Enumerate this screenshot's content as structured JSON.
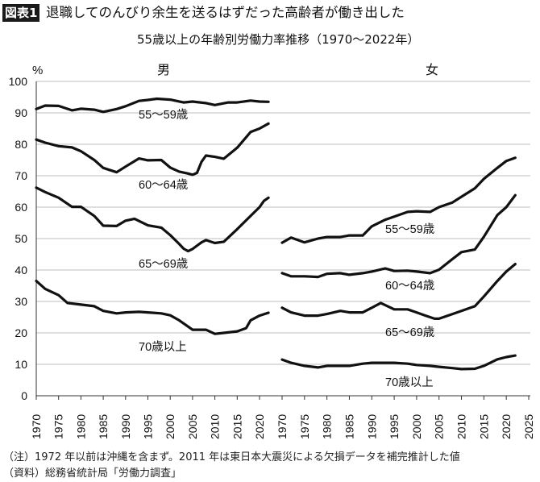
{
  "header": {
    "badge": "図表1",
    "title": "退職してのんびり余生を送るはずだった高齢者が働き出した",
    "subtitle": "55歳以上の年齢別労働力率推移（1970〜2022年）"
  },
  "notes": {
    "note": "（注）1972 年以前は沖縄を含まず。2011 年は東日本大震災による欠損データを補完推計した値",
    "source": "（資料）総務省統計局「労働力調査」"
  },
  "chart_data": {
    "type": "line",
    "title": "55歳以上の年齢別労働力率推移（1970〜2022年）",
    "ylabel": "%",
    "ylim": [
      0,
      100
    ],
    "yticks": [
      0,
      10,
      20,
      30,
      40,
      50,
      60,
      70,
      80,
      90,
      100
    ],
    "xlim": [
      1970,
      2025
    ],
    "xticks": [
      1970,
      1975,
      1980,
      1985,
      1990,
      1995,
      2000,
      2005,
      2010,
      2015,
      2020,
      2025
    ],
    "grid": true,
    "panels": [
      {
        "name": "男",
        "series": [
          {
            "name": "55〜59歳",
            "x": [
              1970,
              1972,
              1975,
              1978,
              1980,
              1983,
              1985,
              1988,
              1990,
              1993,
              1995,
              1997,
              2000,
              2003,
              2005,
              2008,
              2010,
              2013,
              2015,
              2018,
              2020,
              2022
            ],
            "values": [
              91.2,
              92.3,
              92.2,
              90.8,
              91.3,
              91.0,
              90.3,
              91.2,
              92.1,
              93.8,
              94.1,
              94.5,
              94.2,
              93.3,
              93.6,
              93.1,
              92.5,
              93.3,
              93.3,
              93.9,
              93.6,
              93.5
            ]
          },
          {
            "name": "60〜64歳",
            "x": [
              1970,
              1972,
              1975,
              1978,
              1980,
              1983,
              1985,
              1988,
              1990,
              1993,
              1995,
              1998,
              2000,
              2002,
              2004,
              2005,
              2006,
              2007,
              2008,
              2010,
              2012,
              2015,
              2018,
              2020,
              2022
            ],
            "values": [
              81.5,
              80.5,
              79.4,
              79.0,
              77.8,
              75.0,
              72.5,
              71.1,
              72.9,
              75.5,
              74.9,
              75.0,
              72.6,
              71.3,
              70.7,
              70.3,
              70.9,
              74.4,
              76.4,
              76.0,
              75.4,
              78.9,
              83.9,
              85.0,
              86.6
            ]
          },
          {
            "name": "65〜69歳",
            "x": [
              1970,
              1972,
              1975,
              1978,
              1980,
              1983,
              1985,
              1988,
              1990,
              1992,
              1995,
              1998,
              2000,
              2002,
              2003,
              2004,
              2005,
              2007,
              2008,
              2010,
              2012,
              2015,
              2018,
              2020,
              2021,
              2022
            ],
            "values": [
              66.2,
              64.8,
              63.0,
              60.1,
              60.1,
              57.2,
              54.1,
              54.0,
              55.7,
              56.3,
              54.2,
              53.5,
              51.1,
              48.3,
              46.8,
              46.0,
              46.7,
              48.8,
              49.5,
              48.6,
              49.0,
              53.0,
              57.2,
              60.0,
              62.0,
              63.0
            ]
          },
          {
            "name": "70歳以上",
            "x": [
              1970,
              1972,
              1975,
              1977,
              1980,
              1983,
              1985,
              1988,
              1990,
              1993,
              1995,
              1998,
              2000,
              2002,
              2004,
              2005,
              2008,
              2010,
              2012,
              2015,
              2017,
              2018,
              2020,
              2022
            ],
            "values": [
              36.5,
              34.0,
              32.0,
              29.5,
              29.0,
              28.5,
              27.0,
              26.2,
              26.5,
              26.7,
              26.5,
              26.2,
              25.6,
              24.0,
              22.0,
              21.0,
              21.0,
              19.7,
              20.0,
              20.5,
              21.5,
              24.0,
              25.5,
              26.4
            ]
          }
        ]
      },
      {
        "name": "女",
        "series": [
          {
            "name": "55〜59歳",
            "x": [
              1970,
              1972,
              1975,
              1978,
              1980,
              1983,
              1985,
              1988,
              1990,
              1993,
              1995,
              1998,
              2000,
              2003,
              2005,
              2008,
              2010,
              2013,
              2015,
              2018,
              2020,
              2022
            ],
            "values": [
              48.7,
              50.3,
              48.8,
              50.0,
              50.5,
              50.5,
              51.0,
              51.0,
              53.9,
              56.0,
              57.0,
              58.5,
              58.7,
              58.5,
              60.0,
              61.5,
              63.3,
              66.0,
              69.0,
              72.5,
              74.7,
              75.7
            ]
          },
          {
            "name": "60〜64歳",
            "x": [
              1970,
              1972,
              1975,
              1978,
              1980,
              1983,
              1985,
              1988,
              1990,
              1993,
              1995,
              1998,
              2000,
              2003,
              2005,
              2008,
              2010,
              2013,
              2015,
              2018,
              2020,
              2022
            ],
            "values": [
              39.0,
              38.0,
              38.0,
              37.8,
              38.8,
              39.0,
              38.5,
              39.0,
              39.5,
              40.5,
              39.7,
              39.8,
              39.5,
              39.0,
              40.1,
              43.5,
              45.7,
              46.5,
              50.6,
              57.5,
              60.0,
              63.8
            ]
          },
          {
            "name": "65〜69歳",
            "x": [
              1970,
              1972,
              1975,
              1978,
              1980,
              1983,
              1985,
              1988,
              1990,
              1992,
              1995,
              1998,
              2000,
              2002,
              2004,
              2005,
              2008,
              2010,
              2013,
              2015,
              2018,
              2020,
              2022
            ],
            "values": [
              28.0,
              26.5,
              25.5,
              25.5,
              26.0,
              27.0,
              26.5,
              26.5,
              28.0,
              29.5,
              27.5,
              27.5,
              26.5,
              25.5,
              24.5,
              24.5,
              26.0,
              27.0,
              28.5,
              31.6,
              36.5,
              39.5,
              41.9
            ]
          },
          {
            "name": "70歳以上",
            "x": [
              1970,
              1972,
              1975,
              1978,
              1980,
              1983,
              1985,
              1988,
              1990,
              1993,
              1995,
              1998,
              2000,
              2003,
              2005,
              2008,
              2010,
              2013,
              2015,
              2018,
              2020,
              2022
            ],
            "values": [
              11.5,
              10.5,
              9.5,
              9.0,
              9.5,
              9.5,
              9.5,
              10.2,
              10.5,
              10.5,
              10.5,
              10.2,
              9.8,
              9.5,
              9.2,
              8.8,
              8.5,
              8.6,
              9.5,
              11.6,
              12.3,
              12.8
            ]
          }
        ]
      }
    ]
  }
}
